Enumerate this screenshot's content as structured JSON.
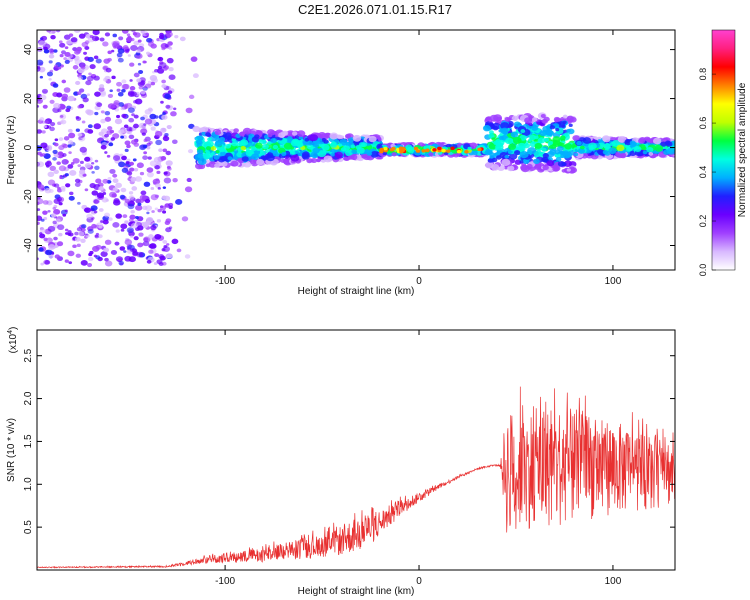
{
  "title": "C2E1.2026.071.01.15.R17",
  "chart_data": [
    {
      "type": "heatmap",
      "xlabel": "Height of straight line (km)",
      "ylabel": "Frequency (Hz)",
      "xlim": [
        -197,
        132
      ],
      "ylim": [
        -50,
        48
      ],
      "xticks": [
        -100,
        0,
        100
      ],
      "yticks": [
        -40,
        -20,
        0,
        20,
        40
      ],
      "colorbar": {
        "label": "Normalized spectral amplitude",
        "range": [
          0.0,
          0.98
        ],
        "ticks": [
          "0.0",
          "0.2",
          "0.4",
          "0.6",
          "0.8"
        ],
        "colors": [
          "#ffffff",
          "#d8b8ff",
          "#a040ff",
          "#6a00ff",
          "#2020ff",
          "#00b0ff",
          "#00ffe0",
          "#00ff40",
          "#c0ff00",
          "#ffff00",
          "#ff8000",
          "#ff0000",
          "#ff2080",
          "#ff40d0"
        ]
      },
      "regions": [
        {
          "x": [
            -197,
            -115
          ],
          "freq_spread": 48,
          "note": "scattered noise"
        },
        {
          "x": [
            -115,
            -20
          ],
          "freq_center": 0,
          "freq_width": [
            8,
            4
          ]
        },
        {
          "x": [
            -20,
            35
          ],
          "freq_center": -1,
          "freq_width": [
            2,
            2
          ],
          "peak": 0.85
        },
        {
          "x": [
            35,
            80
          ],
          "freq_center": 2,
          "freq_width": [
            10,
            12
          ]
        },
        {
          "x": [
            80,
            132
          ],
          "freq_center": 0,
          "freq_width": [
            4,
            3
          ]
        }
      ]
    },
    {
      "type": "line",
      "xlabel": "Height of straight line (km)",
      "ylabel": "SNR (10 * v/v)",
      "multiplier_label": "(x10",
      "multiplier_exp": "4",
      "xlim": [
        -197,
        132
      ],
      "ylim": [
        0,
        2.8
      ],
      "xticks": [
        -100,
        0,
        100
      ],
      "yticks": [
        "0.5",
        "1.0",
        "1.5",
        "2.0",
        "2.5"
      ],
      "series": [
        {
          "name": "SNR",
          "color": "#e83030",
          "envelope_x": [
            -197,
            -130,
            -110,
            -80,
            -60,
            -40,
            -28,
            -20,
            -10,
            0,
            10,
            20,
            30,
            38,
            42,
            45,
            55,
            70,
            85,
            100,
            115,
            132
          ],
          "envelope_mean": [
            0.03,
            0.04,
            0.12,
            0.18,
            0.25,
            0.35,
            0.45,
            0.55,
            0.72,
            0.85,
            0.97,
            1.08,
            1.18,
            1.22,
            1.22,
            1.15,
            1.18,
            1.2,
            1.22,
            1.2,
            1.15,
            1.15
          ],
          "envelope_spread": [
            0.01,
            0.02,
            0.08,
            0.18,
            0.25,
            0.35,
            0.45,
            0.3,
            0.2,
            0.12,
            0.06,
            0.04,
            0.02,
            0.02,
            0.02,
            1.5,
            1.4,
            1.4,
            1.3,
            1.1,
            0.9,
            0.8
          ]
        }
      ]
    }
  ]
}
